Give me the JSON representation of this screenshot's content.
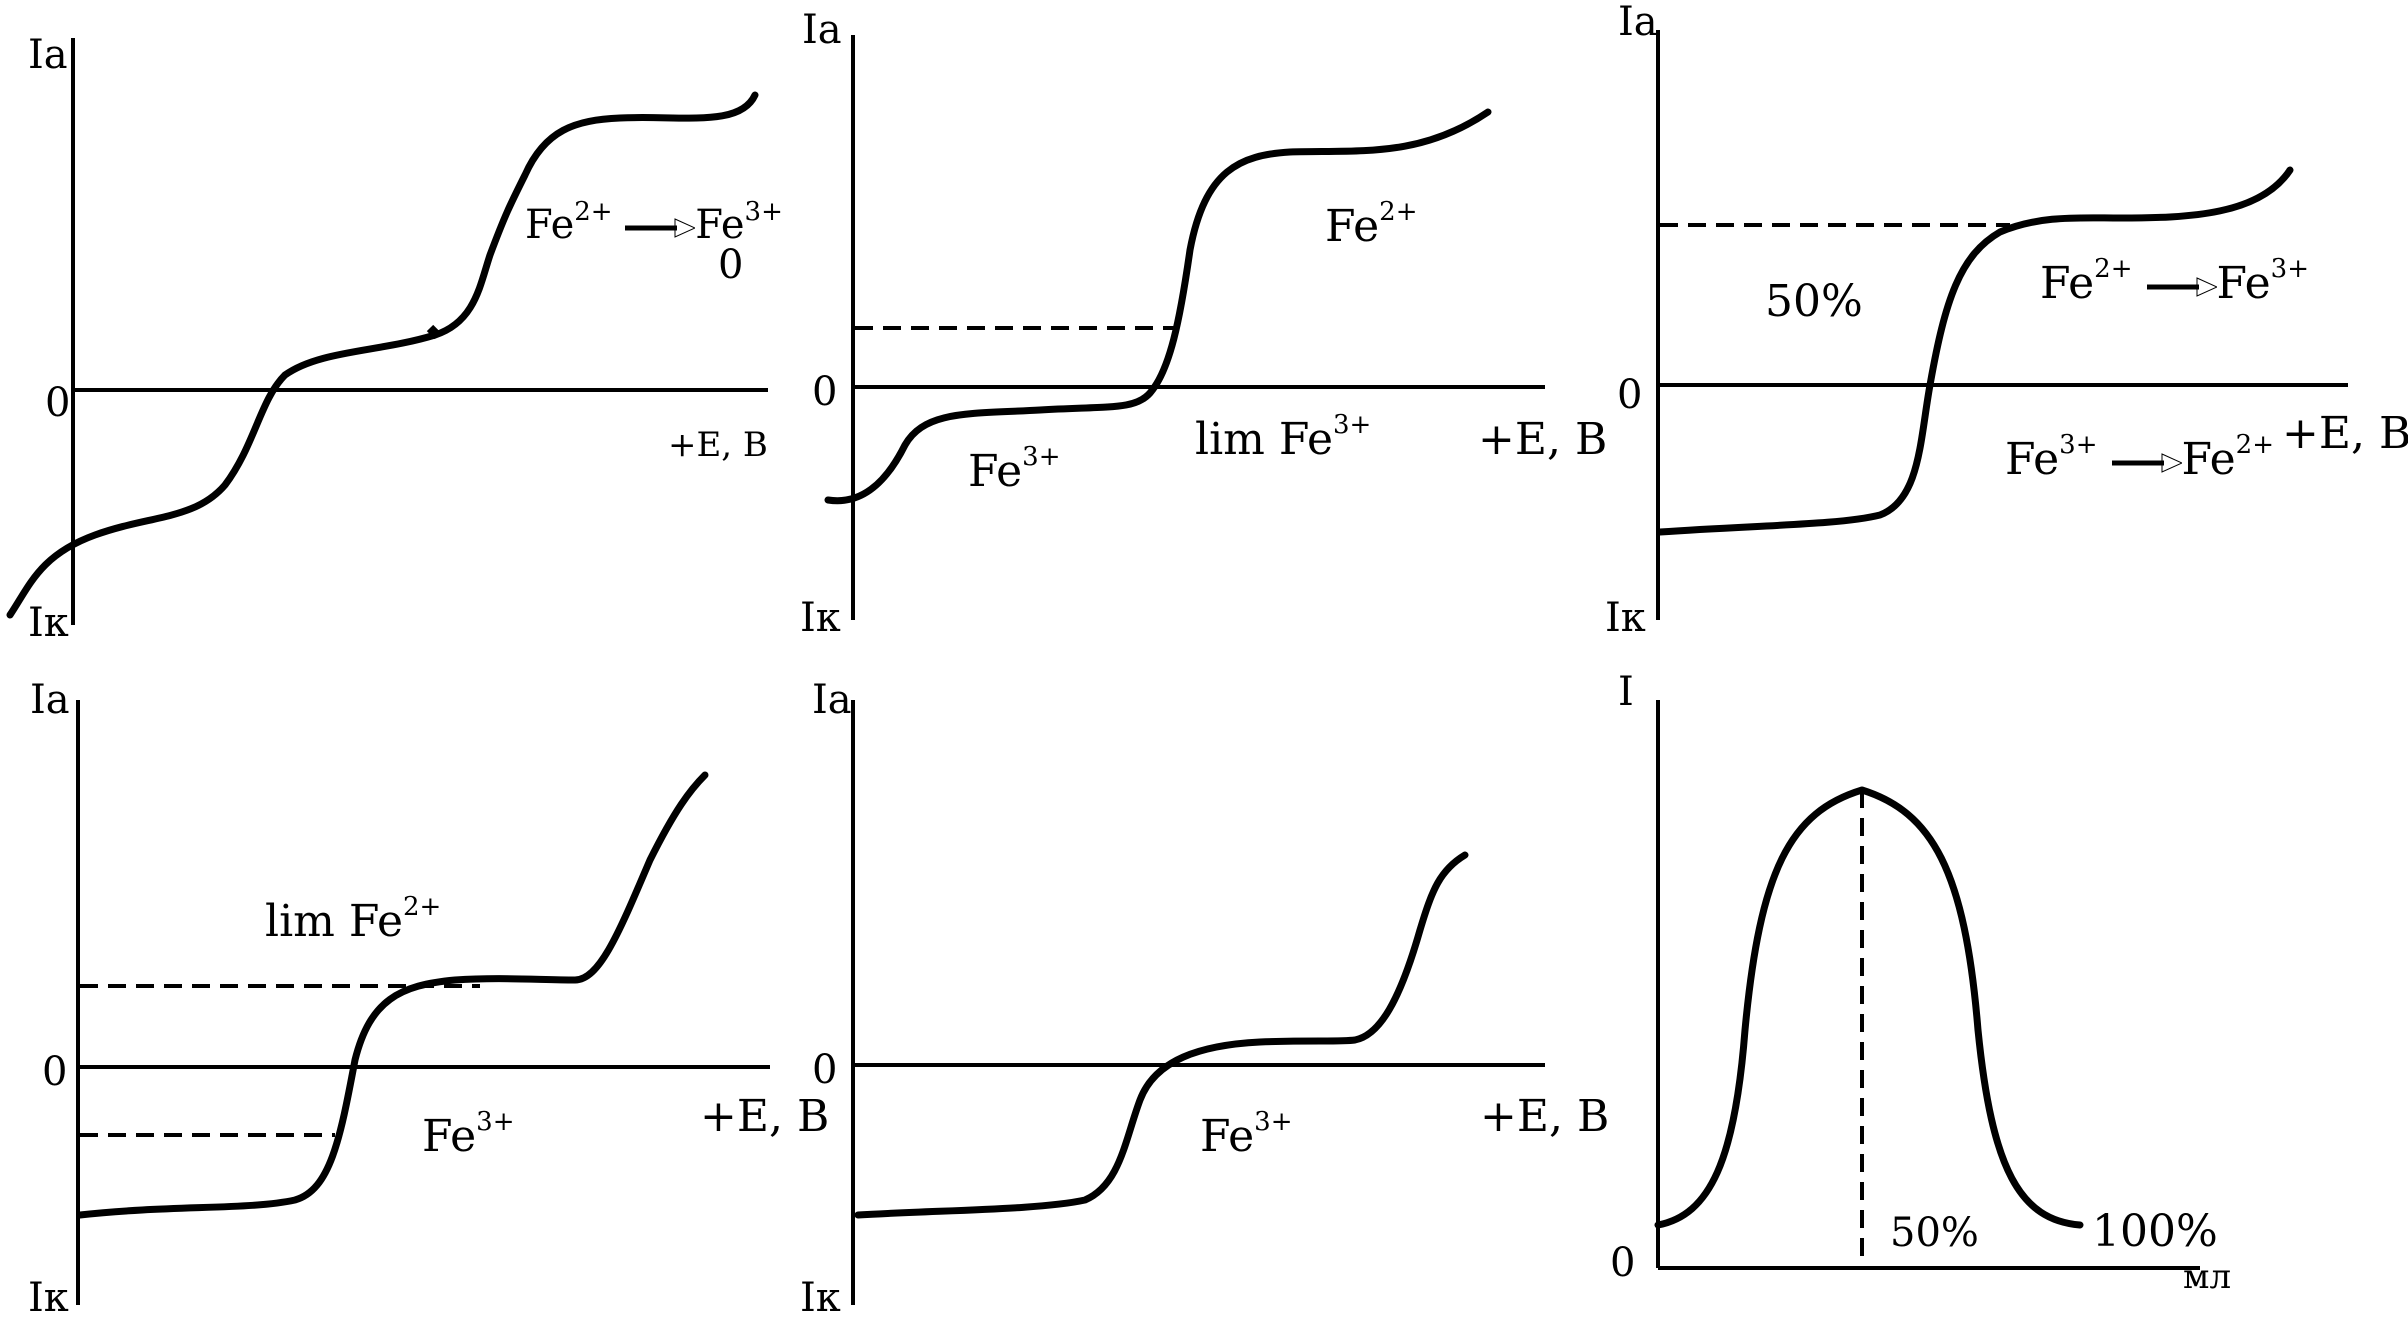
{
  "panels": {
    "p1": {
      "y_top": "Ia",
      "y_bottom": "Iк",
      "zero": "0",
      "x_axis": "+E, B",
      "ion_a": "Fe",
      "ion_a_charge": "2+",
      "ion_b": "Fe",
      "ion_b_charge": "3+",
      "note": "0"
    },
    "p2": {
      "y_top": "Ia",
      "y_bottom": "Iк",
      "zero": "0",
      "x_axis": "+E, B",
      "upper_ion": "Fe",
      "upper_charge": "2+",
      "lower_ion": "Fe",
      "lower_charge": "3+",
      "lim_text": "lim Fe",
      "lim_charge": "3+"
    },
    "p3": {
      "y_top": "Ia",
      "y_bottom": "Iк",
      "zero": "0",
      "x_axis": "+E, B",
      "percent": "50%",
      "r1_a": "Fe",
      "r1_a_charge": "2+",
      "r1_b": "Fe",
      "r1_b_charge": "3+",
      "r2_a": "Fe",
      "r2_a_charge": "3+",
      "r2_b": "Fe",
      "r2_b_charge": "2+"
    },
    "p4": {
      "y_top": "Ia",
      "y_bottom": "Iк",
      "zero": "0",
      "x_axis": "+E, B",
      "lim_text": "lim Fe",
      "lim_charge": "2+",
      "ion": "Fe",
      "ion_charge": "3+"
    },
    "p5": {
      "y_top": "Ia",
      "y_bottom": "Iк",
      "zero": "0",
      "x_axis": "+E, B",
      "ion": "Fe",
      "ion_charge": "3+"
    },
    "p6": {
      "y_top": "I",
      "zero": "0",
      "x_unit": "мл",
      "mid_label": "50%",
      "end_label": "100%"
    }
  }
}
